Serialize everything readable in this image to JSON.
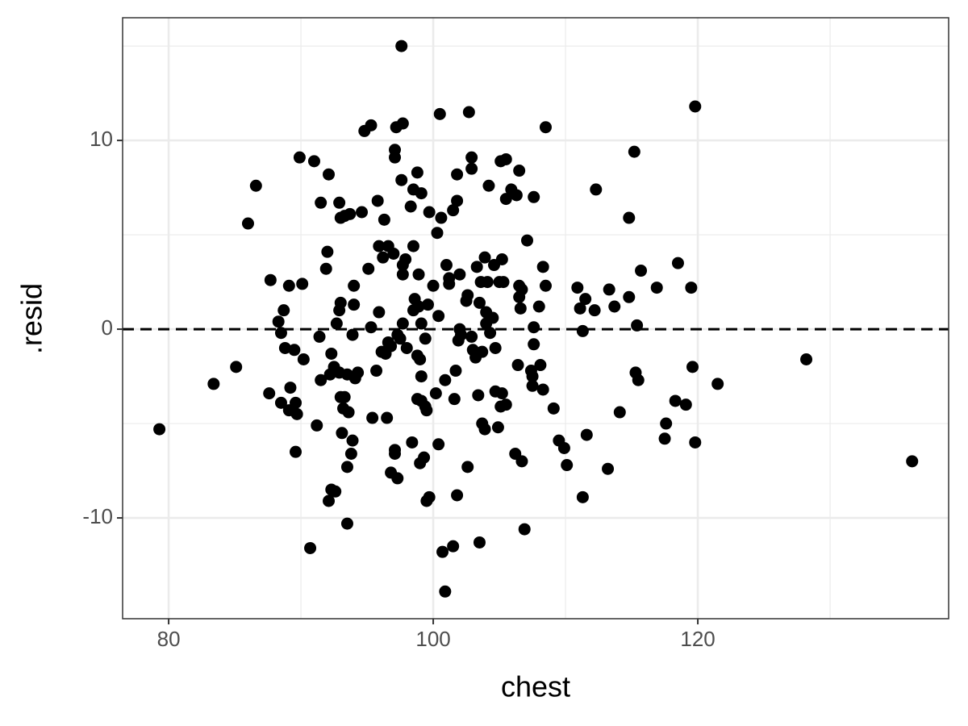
{
  "chart_data": {
    "type": "scatter",
    "xlabel": "chest",
    "ylabel": ".resid",
    "color": "#000000",
    "xlim": [
      76.52,
      138.96
    ],
    "ylim": [
      -15.34,
      16.5
    ],
    "xticks": [
      80,
      100,
      120
    ],
    "yticks": [
      -10,
      0,
      10
    ],
    "xminor": [
      90,
      110,
      130
    ],
    "yminor": [
      -5,
      5,
      15
    ],
    "grid": true,
    "hline": 0,
    "x": [
      79.3,
      83.4,
      85.1,
      86.0,
      86.6,
      87.6,
      87.7,
      88.3,
      88.5,
      88.7,
      88.5,
      88.8,
      89.1,
      89.2,
      89.1,
      89.5,
      89.6,
      89.7,
      89.6,
      89.9,
      90.1,
      90.2,
      90.7,
      91.0,
      91.2,
      91.4,
      91.5,
      91.5,
      91.9,
      92.0,
      92.1,
      92.1,
      92.3,
      92.3,
      92.2,
      92.5,
      92.7,
      92.6,
      92.9,
      93.0,
      92.9,
      93.0,
      92.9,
      93.0,
      93.1,
      93.2,
      93.3,
      93.3,
      93.5,
      93.5,
      93.6,
      93.5,
      93.7,
      93.8,
      93.9,
      93.9,
      94.0,
      94.0,
      94.1,
      94.3,
      94.6,
      94.8,
      95.1,
      95.3,
      95.3,
      95.4,
      95.7,
      95.8,
      95.9,
      95.9,
      96.1,
      96.2,
      96.3,
      96.4,
      96.5,
      96.6,
      96.6,
      96.8,
      96.8,
      97.0,
      97.1,
      97.1,
      97.1,
      97.1,
      97.2,
      97.3,
      97.3,
      97.5,
      97.6,
      97.6,
      97.7,
      97.7,
      97.7,
      97.7,
      97.9,
      98.0,
      98.3,
      98.4,
      98.5,
      98.5,
      98.5,
      98.6,
      98.8,
      98.8,
      98.8,
      98.9,
      98.9,
      99.0,
      99.1,
      99.0,
      99.1,
      99.1,
      99.1,
      99.3,
      99.4,
      99.4,
      99.5,
      99.5,
      99.6,
      99.7,
      99.7,
      100.0,
      100.2,
      100.3,
      100.4,
      100.4,
      100.5,
      100.6,
      100.7,
      100.9,
      100.9,
      101.0,
      101.2,
      101.2,
      101.5,
      101.5,
      101.6,
      101.7,
      101.8,
      101.8,
      101.8,
      101.9,
      102.0,
      102.0,
      102.1,
      102.5,
      102.6,
      102.7,
      102.6,
      102.9,
      102.9,
      102.9,
      103.0,
      103.2,
      103.3,
      103.4,
      103.5,
      103.5,
      103.6,
      103.7,
      103.7,
      103.9,
      103.9,
      104.0,
      104.0,
      104.1,
      104.2,
      104.3,
      104.5,
      104.6,
      104.7,
      104.7,
      104.9,
      105.0,
      105.1,
      105.1,
      105.2,
      105.2,
      105.3,
      105.5,
      105.5,
      105.5,
      105.9,
      106.2,
      106.3,
      106.4,
      106.5,
      106.5,
      106.5,
      106.6,
      106.7,
      106.7,
      106.9,
      107.1,
      107.4,
      107.5,
      107.6,
      107.6,
      107.6,
      107.5,
      108.0,
      108.1,
      108.3,
      108.3,
      108.5,
      108.5,
      109.1,
      109.5,
      109.9,
      110.1,
      110.9,
      111.1,
      111.3,
      111.3,
      111.5,
      111.6,
      112.2,
      112.3,
      113.2,
      113.3,
      113.7,
      114.1,
      114.8,
      114.8,
      115.2,
      115.3,
      115.4,
      115.5,
      115.7,
      116.9,
      117.5,
      117.6,
      118.3,
      118.5,
      119.1,
      119.5,
      119.6,
      119.8,
      119.8,
      121.5,
      128.2,
      136.2
    ],
    "values": [
      -5.3,
      -2.9,
      -2.0,
      5.6,
      7.6,
      -3.4,
      2.6,
      0.4,
      -0.2,
      1.0,
      -3.9,
      -1.0,
      2.3,
      -3.1,
      -4.3,
      -1.1,
      -3.9,
      -4.5,
      -6.5,
      9.1,
      2.4,
      -1.6,
      -11.6,
      8.9,
      -5.1,
      -0.4,
      6.7,
      -2.7,
      3.2,
      4.1,
      8.2,
      -9.1,
      -8.5,
      -1.3,
      -2.4,
      -2.0,
      0.3,
      -8.6,
      6.7,
      1.4,
      1.0,
      5.9,
      -2.3,
      -3.6,
      -5.5,
      -4.2,
      6.0,
      -3.6,
      -2.4,
      -7.3,
      -4.4,
      -10.3,
      6.1,
      -6.6,
      -5.9,
      -0.3,
      1.3,
      2.3,
      -2.6,
      -2.3,
      6.2,
      10.5,
      3.2,
      10.8,
      0.1,
      -4.7,
      -2.2,
      6.8,
      0.9,
      4.4,
      -1.2,
      3.8,
      5.8,
      -1.3,
      -4.7,
      4.4,
      -0.7,
      -7.6,
      -0.9,
      4.0,
      9.5,
      9.1,
      -6.4,
      -6.6,
      10.7,
      -7.9,
      -0.3,
      -0.5,
      7.9,
      15.0,
      3.4,
      2.9,
      10.9,
      0.3,
      3.7,
      -1.0,
      6.5,
      -6.0,
      4.4,
      1.0,
      7.4,
      1.6,
      8.3,
      -1.4,
      -3.7,
      2.9,
      1.2,
      -1.6,
      -2.5,
      -7.1,
      7.2,
      0.3,
      -3.8,
      -6.8,
      -0.5,
      -4.1,
      -9.1,
      -4.3,
      1.3,
      6.2,
      -8.9,
      2.3,
      -3.4,
      5.1,
      0.7,
      -6.1,
      11.4,
      5.9,
      -11.8,
      -13.9,
      -2.7,
      3.4,
      2.7,
      2.4,
      -11.5,
      6.3,
      -3.7,
      -2.2,
      8.2,
      -8.8,
      6.8,
      -0.6,
      2.9,
      0.0,
      -0.3,
      1.5,
      1.8,
      11.5,
      -7.3,
      -0.4,
      9.1,
      8.5,
      -1.1,
      -1.5,
      3.3,
      -3.5,
      1.4,
      -11.3,
      2.5,
      -1.2,
      -5.0,
      -5.3,
      3.8,
      0.3,
      0.9,
      2.5,
      7.6,
      -0.2,
      0.6,
      3.4,
      -1.0,
      -3.3,
      -5.2,
      2.5,
      -4.1,
      8.9,
      -3.4,
      3.7,
      2.5,
      6.9,
      9.0,
      -4.0,
      7.4,
      -6.6,
      7.1,
      -1.9,
      8.4,
      2.3,
      1.7,
      1.1,
      2.1,
      -7.0,
      -10.6,
      4.7,
      -2.2,
      -2.5,
      7.0,
      -0.8,
      0.1,
      -3.0,
      1.2,
      -1.9,
      -3.2,
      3.3,
      10.7,
      2.3,
      -4.2,
      -5.9,
      -6.3,
      -7.2,
      2.2,
      1.1,
      -0.1,
      -8.9,
      1.6,
      -5.6,
      1.0,
      7.4,
      -7.4,
      2.1,
      1.2,
      -4.4,
      1.7,
      5.9,
      9.4,
      -2.3,
      0.2,
      -2.7,
      3.1,
      2.2,
      -5.8,
      -5.0,
      -3.8,
      3.5,
      -4.0,
      2.2,
      -2.0,
      11.8,
      -6.0,
      -2.9,
      -1.6,
      -7.0
    ]
  }
}
